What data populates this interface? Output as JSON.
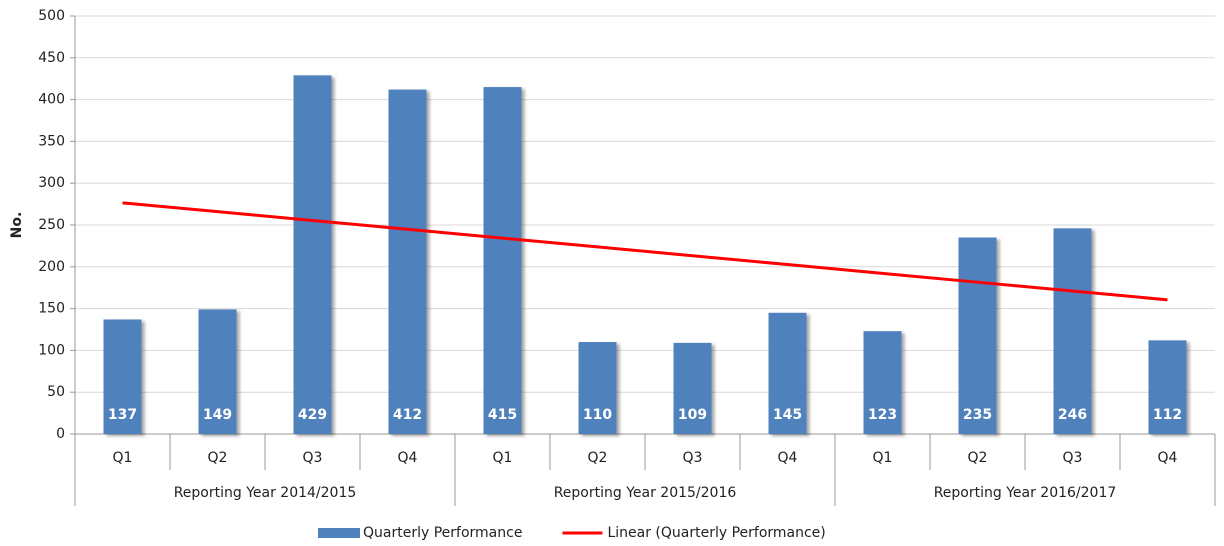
{
  "chart_data": {
    "type": "bar",
    "ylabel": "No.",
    "categories": [
      "Q1",
      "Q2",
      "Q3",
      "Q4",
      "Q1",
      "Q2",
      "Q3",
      "Q4",
      "Q1",
      "Q2",
      "Q3",
      "Q4"
    ],
    "groups": [
      "Reporting Year 2014/2015",
      "Reporting Year 2015/2016",
      "Reporting Year 2016/2017"
    ],
    "series": [
      {
        "name": "Quarterly Performance",
        "color": "#4f81bd",
        "values": [
          137,
          149,
          429,
          412,
          415,
          110,
          109,
          145,
          123,
          235,
          246,
          112
        ]
      },
      {
        "name": "Linear (Quarterly Performance)",
        "color": "#ff0000",
        "type": "line",
        "values": [
          276.5,
          266.0,
          255.4,
          244.9,
          234.3,
          223.8,
          213.2,
          202.7,
          192.1,
          181.6,
          171.0,
          160.5
        ]
      }
    ],
    "ylim": [
      0,
      500
    ],
    "yticks": [
      0,
      50,
      100,
      150,
      200,
      250,
      300,
      350,
      400,
      450,
      500
    ],
    "grid": true
  }
}
